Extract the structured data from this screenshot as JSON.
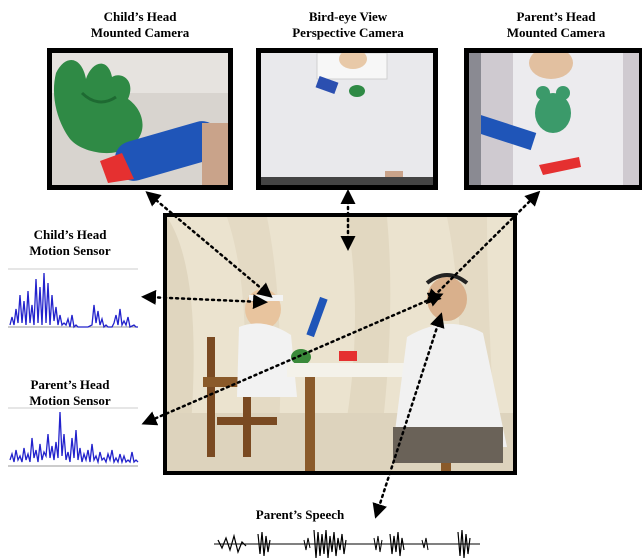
{
  "cameras": {
    "child": {
      "line1": "Child’s Head",
      "line2": "Mounted Camera"
    },
    "bird": {
      "line1": "Bird-eye View",
      "line2": "Perspective Camera"
    },
    "parent": {
      "line1": "Parent’s Head",
      "line2": "Mounted Camera"
    }
  },
  "sensors": {
    "child": {
      "line1": "Child’s Head",
      "line2": "Motion Sensor"
    },
    "parent": {
      "line1": "Parent’s Head",
      "line2": "Motion Sensor"
    }
  },
  "speech": {
    "label": "Parent’s Speech"
  },
  "colors": {
    "signal": "#2222cc",
    "arrow": "#000000",
    "frame": "#000000"
  }
}
